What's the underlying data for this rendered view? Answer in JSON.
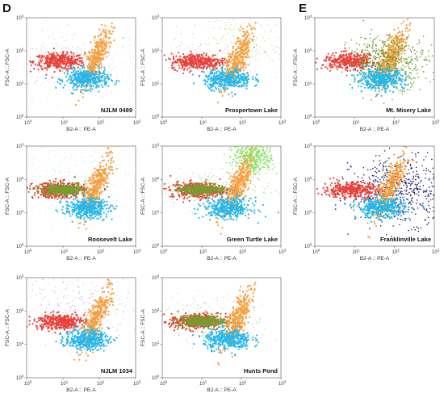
{
  "panel_letters": [
    "D",
    "E"
  ],
  "chart_data": [
    {
      "type": "scatter",
      "panel": "D",
      "title": "NJLM 0489",
      "xlabel": "B2-A :: PE-A",
      "ylabel": "FSC-A :: FSC-A",
      "xscale": "log",
      "yscale": "log",
      "xlim": [
        1,
        1000
      ],
      "ylim": [
        1,
        1000
      ],
      "xticks": [
        "10^0",
        "10^1",
        "10^2",
        "10^3"
      ],
      "yticks": [
        "10^0",
        "10^1",
        "10^2",
        "10^3"
      ],
      "legend": "none",
      "populations": [
        {
          "color": "#bdbdbd",
          "cx": 15,
          "cy": 45,
          "spread_x": 1.0,
          "spread_y": 0.5,
          "density": "sparse"
        },
        {
          "color": "#e8413a",
          "cx": 8,
          "cy": 48,
          "spread_x": 0.35,
          "spread_y": 0.12
        },
        {
          "color": "#f4a040",
          "cx": 80,
          "cy": 60,
          "spread_x": 0.2,
          "spread_y": 0.45
        },
        {
          "color": "#27b6e8",
          "cx": 45,
          "cy": 14,
          "spread_x": 0.3,
          "spread_y": 0.15
        }
      ]
    },
    {
      "type": "scatter",
      "panel": "D",
      "title": "Prospertown Lake",
      "xlabel": "B2-A :: PE-A",
      "ylabel": "FSC-A :: FSC-A",
      "xscale": "log",
      "yscale": "log",
      "xlim": [
        1,
        1000
      ],
      "ylim": [
        1,
        1000
      ],
      "xticks": [
        "10^0",
        "10^1",
        "10^2",
        "10^3"
      ],
      "yticks": [
        "10^0",
        "10^1",
        "10^2",
        "10^3"
      ],
      "legend": "none",
      "populations": [
        {
          "color": "#8fd16a",
          "cx": 60,
          "cy": 140,
          "spread_x": 0.8,
          "spread_y": 0.5,
          "density": "sparse"
        },
        {
          "color": "#e8413a",
          "cx": 8,
          "cy": 48,
          "spread_x": 0.35,
          "spread_y": 0.12
        },
        {
          "color": "#f4a040",
          "cx": 80,
          "cy": 60,
          "spread_x": 0.2,
          "spread_y": 0.45
        },
        {
          "color": "#27b6e8",
          "cx": 45,
          "cy": 14,
          "spread_x": 0.3,
          "spread_y": 0.15
        }
      ]
    },
    {
      "type": "scatter",
      "panel": "E",
      "title": "Mt. Misery Lake",
      "xlabel": "B2-A :: PE-A",
      "ylabel": "FSC-A :: FSC-A",
      "xscale": "log",
      "yscale": "log",
      "xlim": [
        1,
        1000
      ],
      "ylim": [
        1,
        1000
      ],
      "xticks": [
        "10^0",
        "10^1",
        "10^2",
        "10^3"
      ],
      "yticks": [
        "10^0",
        "10^1",
        "10^2",
        "10^3"
      ],
      "legend": "none",
      "populations": [
        {
          "color": "#e8413a",
          "cx": 8,
          "cy": 48,
          "spread_x": 0.35,
          "spread_y": 0.12
        },
        {
          "color": "#f4a040",
          "cx": 80,
          "cy": 60,
          "spread_x": 0.2,
          "spread_y": 0.45
        },
        {
          "color": "#6a9a2a",
          "cx": 70,
          "cy": 50,
          "spread_x": 0.5,
          "spread_y": 0.4,
          "density": "dense"
        },
        {
          "color": "#27b6e8",
          "cx": 45,
          "cy": 14,
          "spread_x": 0.3,
          "spread_y": 0.15
        }
      ]
    },
    {
      "type": "scatter",
      "panel": "D",
      "title": "Roosevelt Lake",
      "xlabel": "B2-A :: PE-A",
      "ylabel": "FSC-A :: FSC-A",
      "xscale": "log",
      "yscale": "log",
      "xlim": [
        1,
        1000
      ],
      "ylim": [
        1,
        1000
      ],
      "xticks": [
        "10^0",
        "10^1",
        "10^2",
        "10^3"
      ],
      "yticks": [
        "10^0",
        "10^1",
        "10^2",
        "10^3"
      ],
      "legend": "none",
      "populations": [
        {
          "color": "#9de8c8",
          "cx": 30,
          "cy": 100,
          "spread_x": 1.0,
          "spread_y": 0.5,
          "density": "sparse"
        },
        {
          "color": "#e8413a",
          "cx": 8,
          "cy": 48,
          "spread_x": 0.35,
          "spread_y": 0.12
        },
        {
          "color": "#7a9a30",
          "cx": 10,
          "cy": 50,
          "spread_x": 0.3,
          "spread_y": 0.08
        },
        {
          "color": "#f4a040",
          "cx": 80,
          "cy": 60,
          "spread_x": 0.2,
          "spread_y": 0.45
        },
        {
          "color": "#27b6e8",
          "cx": 45,
          "cy": 14,
          "spread_x": 0.3,
          "spread_y": 0.15
        }
      ]
    },
    {
      "type": "scatter",
      "panel": "D",
      "title": "Green Turtle Lake",
      "xlabel": "B2-A :: PE-A",
      "ylabel": "FSC-A :: FSC-A",
      "xscale": "log",
      "yscale": "log",
      "xlim": [
        1,
        1000
      ],
      "ylim": [
        1,
        1000
      ],
      "xticks": [
        "10^0",
        "10^1",
        "10^2",
        "10^3"
      ],
      "yticks": [
        "10^0",
        "10^1",
        "10^2",
        "10^3"
      ],
      "legend": "none",
      "populations": [
        {
          "color": "#7fe05a",
          "cx": 200,
          "cy": 500,
          "spread_x": 0.25,
          "spread_y": 0.3,
          "density": "dense"
        },
        {
          "color": "#8fd16a",
          "cx": 15,
          "cy": 50,
          "spread_x": 0.8,
          "spread_y": 0.3,
          "density": "sparse"
        },
        {
          "color": "#e8413a",
          "cx": 8,
          "cy": 48,
          "spread_x": 0.35,
          "spread_y": 0.12
        },
        {
          "color": "#7a9a30",
          "cx": 10,
          "cy": 50,
          "spread_x": 0.3,
          "spread_y": 0.08
        },
        {
          "color": "#f4a040",
          "cx": 80,
          "cy": 60,
          "spread_x": 0.2,
          "spread_y": 0.45
        },
        {
          "color": "#27b6e8",
          "cx": 45,
          "cy": 14,
          "spread_x": 0.3,
          "spread_y": 0.15
        }
      ]
    },
    {
      "type": "scatter",
      "panel": "E",
      "title": "Franklinville Lake",
      "xlabel": "B2-A :: PE-A",
      "ylabel": "FSC-A :: FSC-A",
      "xscale": "log",
      "yscale": "log",
      "xlim": [
        1,
        1000
      ],
      "ylim": [
        1,
        1000
      ],
      "xticks": [
        "10^0",
        "10^1",
        "10^2",
        "10^3"
      ],
      "yticks": [
        "10^0",
        "10^1",
        "10^2",
        "10^3"
      ],
      "legend": "none",
      "populations": [
        {
          "color": "#1a1f6e",
          "cx": 150,
          "cy": 50,
          "spread_x": 0.6,
          "spread_y": 0.5,
          "density": "dense"
        },
        {
          "color": "#e8413a",
          "cx": 8,
          "cy": 48,
          "spread_x": 0.35,
          "spread_y": 0.12
        },
        {
          "color": "#f4a040",
          "cx": 80,
          "cy": 60,
          "spread_x": 0.2,
          "spread_y": 0.45
        },
        {
          "color": "#27b6e8",
          "cx": 45,
          "cy": 14,
          "spread_x": 0.3,
          "spread_y": 0.15
        }
      ]
    },
    {
      "type": "scatter",
      "panel": "D",
      "title": "NJLM 1034",
      "xlabel": "B2-A :: PE-A",
      "ylabel": "FSC-A :: FSC-A",
      "xscale": "log",
      "yscale": "log",
      "xlim": [
        1,
        1000
      ],
      "ylim": [
        1,
        1000
      ],
      "xticks": [
        "10^0",
        "10^1",
        "10^2",
        "10^3"
      ],
      "yticks": [
        "10^0",
        "10^1",
        "10^2",
        "10^3"
      ],
      "legend": "none",
      "populations": [
        {
          "color": "#b8a0b8",
          "cx": 30,
          "cy": 150,
          "spread_x": 0.8,
          "spread_y": 0.5,
          "density": "sparse"
        },
        {
          "color": "#e8413a",
          "cx": 8,
          "cy": 48,
          "spread_x": 0.35,
          "spread_y": 0.12
        },
        {
          "color": "#f4a040",
          "cx": 80,
          "cy": 60,
          "spread_x": 0.2,
          "spread_y": 0.45
        },
        {
          "color": "#27b6e8",
          "cx": 45,
          "cy": 14,
          "spread_x": 0.3,
          "spread_y": 0.15
        }
      ]
    },
    {
      "type": "scatter",
      "panel": "D",
      "title": "Hunts Pond",
      "xlabel": "B2-A :: PE-A",
      "ylabel": "FSC-A :: FSC-A",
      "xscale": "log",
      "yscale": "log",
      "xlim": [
        1,
        1000
      ],
      "ylim": [
        1,
        1000
      ],
      "xticks": [
        "10^0",
        "10^1",
        "10^2",
        "10^3"
      ],
      "yticks": [
        "10^0",
        "10^1",
        "10^2",
        "10^3"
      ],
      "legend": "none",
      "populations": [
        {
          "color": "#8fd16a",
          "cx": 10,
          "cy": 55,
          "spread_x": 0.8,
          "spread_y": 0.35,
          "density": "sparse"
        },
        {
          "color": "#e8413a",
          "cx": 8,
          "cy": 48,
          "spread_x": 0.35,
          "spread_y": 0.12
        },
        {
          "color": "#7a9a30",
          "cx": 10,
          "cy": 50,
          "spread_x": 0.3,
          "spread_y": 0.08
        },
        {
          "color": "#f4a040",
          "cx": 80,
          "cy": 60,
          "spread_x": 0.2,
          "spread_y": 0.45
        },
        {
          "color": "#27b6e8",
          "cx": 45,
          "cy": 14,
          "spread_x": 0.3,
          "spread_y": 0.15
        }
      ]
    }
  ]
}
